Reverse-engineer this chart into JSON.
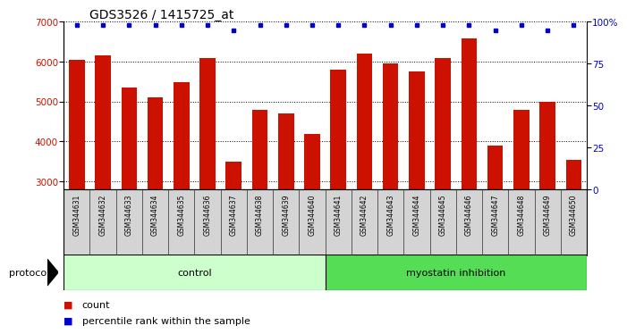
{
  "title": "GDS3526 / 1415725_at",
  "samples": [
    "GSM344631",
    "GSM344632",
    "GSM344633",
    "GSM344634",
    "GSM344635",
    "GSM344636",
    "GSM344637",
    "GSM344638",
    "GSM344639",
    "GSM344640",
    "GSM344641",
    "GSM344642",
    "GSM344643",
    "GSM344644",
    "GSM344645",
    "GSM344646",
    "GSM344647",
    "GSM344648",
    "GSM344649",
    "GSM344650"
  ],
  "counts": [
    6050,
    6150,
    5350,
    5100,
    5480,
    6100,
    3500,
    4800,
    4700,
    4200,
    5800,
    6200,
    5950,
    5750,
    6100,
    6580,
    3900,
    4800,
    5000,
    3550
  ],
  "percentile_ranks": [
    98,
    98,
    98,
    98,
    98,
    98,
    95,
    98,
    98,
    98,
    98,
    98,
    98,
    98,
    98,
    98,
    95,
    98,
    95,
    98
  ],
  "control_count": 10,
  "ylim_left": [
    2800,
    7000
  ],
  "ylim_right": [
    0,
    100
  ],
  "yticks_left": [
    3000,
    4000,
    5000,
    6000,
    7000
  ],
  "yticks_right": [
    0,
    25,
    50,
    75,
    100
  ],
  "bar_color": "#cc1100",
  "dot_color": "#0000cc",
  "bar_width": 0.6,
  "protocol_label": "protocol",
  "control_label": "control",
  "myostatin_label": "myostatin inhibition",
  "legend_count_label": "count",
  "legend_pct_label": "percentile rank within the sample",
  "title_fontsize": 10,
  "tick_fontsize": 7.5,
  "sample_label_fontsize": 5.5,
  "protocol_fontsize": 8,
  "legend_fontsize": 8,
  "control_color": "#ccffcc",
  "myostatin_color": "#55dd55",
  "gray_color": "#d4d4d4"
}
